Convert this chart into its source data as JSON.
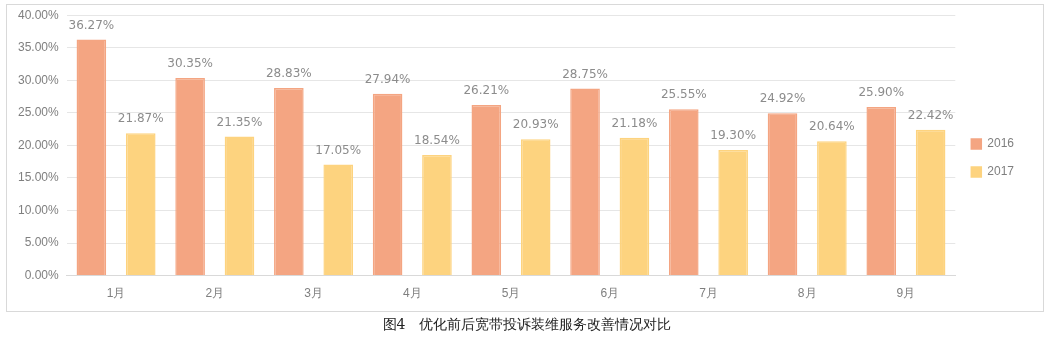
{
  "chart_data": {
    "type": "bar",
    "title": "图4　优化前后宽带投诉装维服务改善情况对比",
    "categories": [
      "1月",
      "2月",
      "3月",
      "4月",
      "5月",
      "6月",
      "7月",
      "8月",
      "9月"
    ],
    "series": [
      {
        "name": "2016",
        "color": "#f4a582",
        "values": [
          36.27,
          30.35,
          28.83,
          27.94,
          26.21,
          28.75,
          25.55,
          24.92,
          25.9
        ],
        "value_labels": [
          "36.27%",
          "30.35%",
          "28.83%",
          "27.94%",
          "26.21%",
          "28.75%",
          "25.55%",
          "24.92%",
          "25.90%"
        ]
      },
      {
        "name": "2017",
        "color": "#fdd37f",
        "values": [
          21.87,
          21.35,
          17.05,
          18.54,
          20.93,
          21.18,
          19.3,
          20.64,
          22.42
        ],
        "value_labels": [
          "21.87%",
          "21.35%",
          "17.05%",
          "18.54%",
          "20.93%",
          "21.18%",
          "19.30%",
          "20.64%",
          "22.42%"
        ]
      }
    ],
    "ylim": [
      0,
      40
    ],
    "yticks": [
      {
        "value": 0,
        "label": "0.00%"
      },
      {
        "value": 5,
        "label": "5.00%"
      },
      {
        "value": 10,
        "label": "10.00%"
      },
      {
        "value": 15,
        "label": "15.00%"
      },
      {
        "value": 20,
        "label": "20.00%"
      },
      {
        "value": 25,
        "label": "25.00%"
      },
      {
        "value": 30,
        "label": "30.00%"
      },
      {
        "value": 35,
        "label": "35.00%"
      },
      {
        "value": 40,
        "label": "40.00%"
      }
    ],
    "grid": "y",
    "legend": "right"
  }
}
